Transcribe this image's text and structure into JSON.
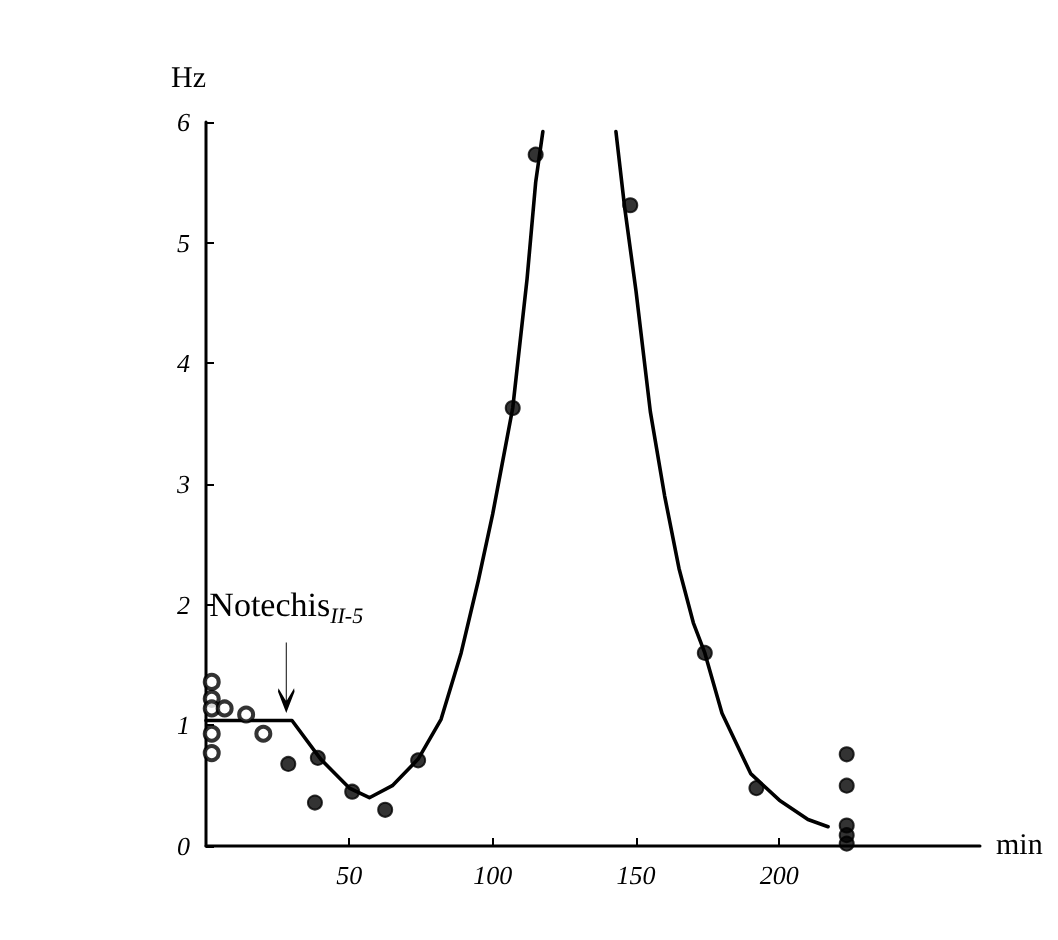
{
  "chart_data": {
    "type": "scatter",
    "xlabel": "min",
    "ylabel": "Hz",
    "xlim": [
      0,
      270
    ],
    "xticks": [
      50,
      100,
      150,
      200
    ],
    "ylim": [
      0,
      6
    ],
    "yticks": [
      0,
      1,
      2,
      3,
      4,
      5,
      6
    ],
    "grid": false,
    "annotations": [
      {
        "text": "Notechis$_{II-5}$",
        "x": 28,
        "y": 1.04
      }
    ],
    "series": [
      {
        "marker": "emptyCircle",
        "color": "#000000",
        "x": [
          2,
          2,
          2,
          6.5,
          14,
          2,
          20,
          2
        ],
        "values": [
          1.36,
          1.22,
          1.14,
          1.14,
          1.09,
          0.93,
          0.93,
          0.77
        ]
      },
      {
        "marker": "circle",
        "color": "#000000",
        "x": [
          28.7,
          39,
          38,
          51,
          62.5,
          74,
          107,
          115,
          148,
          174,
          192,
          223.5,
          223.5,
          223.5,
          223.5,
          223.5
        ],
        "values": [
          0.68,
          0.73,
          0.36,
          0.45,
          0.3,
          0.71,
          3.63,
          5.73,
          5.31,
          1.6,
          0.48,
          0.76,
          0.5,
          0.17,
          0.09,
          0.02
        ]
      },
      {
        "type": "line",
        "marker": "none",
        "color": "#000000",
        "x": [
          0,
          30,
          40,
          50,
          57,
          65,
          74,
          82,
          89,
          95,
          100,
          107,
          112,
          115,
          117.5,
          130,
          143,
          146,
          150,
          155,
          160,
          165,
          170,
          174,
          180,
          190,
          200,
          210,
          217
        ],
        "values": [
          1.04,
          1.04,
          0.72,
          0.48,
          0.4,
          0.5,
          0.72,
          1.05,
          1.6,
          2.2,
          2.75,
          3.63,
          4.7,
          5.5,
          5.92,
          null,
          5.92,
          5.3,
          4.6,
          3.6,
          2.9,
          2.3,
          1.85,
          1.6,
          1.1,
          0.6,
          0.38,
          0.22,
          0.16
        ]
      }
    ]
  }
}
